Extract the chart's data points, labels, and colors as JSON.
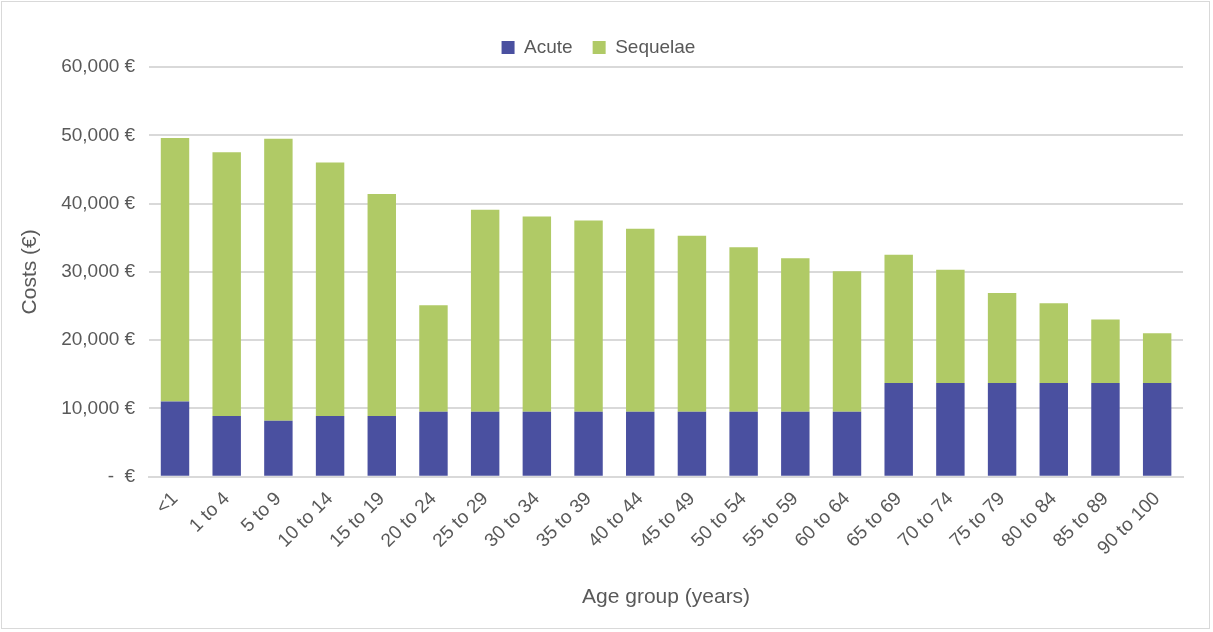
{
  "chart_data": {
    "type": "bar",
    "stacked": true,
    "xlabel": "Age group (years)",
    "ylabel": "Costs (€)",
    "categories": [
      "<1",
      "1 to 4",
      "5 to 9",
      "10 to 14",
      "15 to 19",
      "20 to 24",
      "25 to 29",
      "30 to 34",
      "35 to 39",
      "40 to 44",
      "45 to 49",
      "50 to 54",
      "55 to 59",
      "60 to 64",
      "65 to 69",
      "70 to 74",
      "75 to 79",
      "80 to 84",
      "85 to 89",
      "90 to 100"
    ],
    "series": [
      {
        "name": "Acute",
        "color": "#4a50a0",
        "values": [
          11000,
          8900,
          8200,
          8900,
          8900,
          9500,
          9500,
          9500,
          9500,
          9500,
          9500,
          9500,
          9500,
          9500,
          13700,
          13700,
          13700,
          13700,
          13700,
          13700
        ]
      },
      {
        "name": "Sequelae",
        "color": "#b0ca66",
        "values": [
          38600,
          38600,
          41300,
          37100,
          32500,
          15600,
          29600,
          28600,
          28000,
          26800,
          25800,
          24100,
          22500,
          20600,
          18800,
          16600,
          13200,
          11700,
          9300,
          7300
        ]
      }
    ],
    "ylim": [
      0,
      60000
    ],
    "yticks": [
      {
        "value": 0,
        "label": "-  €"
      },
      {
        "value": 10000,
        "label": "10,000 €"
      },
      {
        "value": 20000,
        "label": "20,000 €"
      },
      {
        "value": 30000,
        "label": "30,000 €"
      },
      {
        "value": 40000,
        "label": "40,000 €"
      },
      {
        "value": 50000,
        "label": "50,000 €"
      },
      {
        "value": 60000,
        "label": "60,000 €"
      }
    ],
    "grid": "y",
    "legend": "top"
  }
}
